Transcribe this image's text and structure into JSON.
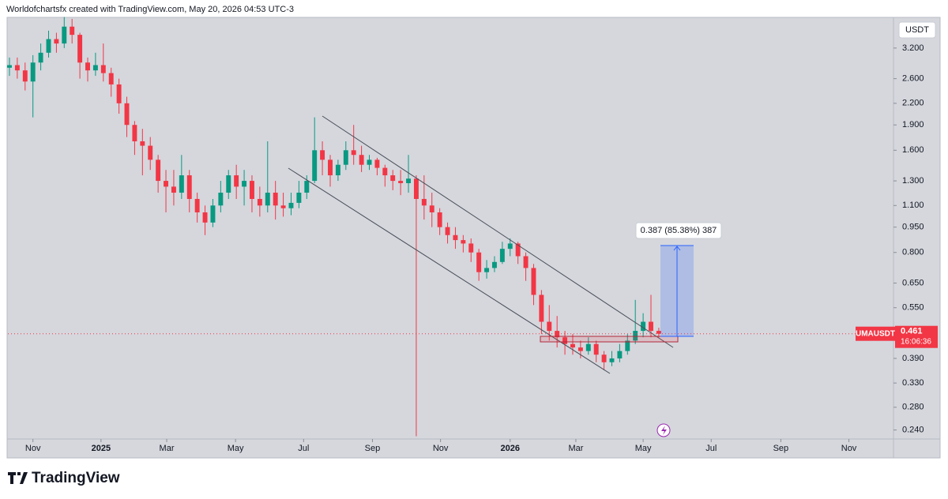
{
  "header": "Worldofchartsfx created with TradingView.com, May 20, 2026 04:53 UTC-3",
  "brand": "TradingView",
  "chart_data": {
    "type": "candlestick",
    "symbol": "UMAUSDT",
    "currency": "USDT",
    "log_scale": true,
    "up_color": "#089981",
    "down_color": "#f23645",
    "last_price": 0.461,
    "countdown": "16:06:36",
    "measure_label": "0.387 (85.38%) 387",
    "xlim": [
      -3.2,
      109.9
    ],
    "xticks": [
      {
        "value": 0,
        "label": "Nov"
      },
      {
        "value": 8.7,
        "label": "2025"
      },
      {
        "value": 17.1,
        "label": "Mar"
      },
      {
        "value": 25.9,
        "label": "May"
      },
      {
        "value": 34.6,
        "label": "Jul"
      },
      {
        "value": 43.4,
        "label": "Sep"
      },
      {
        "value": 52.1,
        "label": "Nov"
      },
      {
        "value": 61,
        "label": "2026"
      },
      {
        "value": 69.4,
        "label": "Mar"
      },
      {
        "value": 78,
        "label": "May"
      },
      {
        "value": 86.7,
        "label": "Jul"
      },
      {
        "value": 95.6,
        "label": "Sep"
      },
      {
        "value": 104.3,
        "label": "Nov"
      }
    ],
    "ylim": [
      0.227,
      3.94
    ],
    "yticks": [
      {
        "value": 3.2,
        "label": "3.200"
      },
      {
        "value": 2.6,
        "label": "2.600"
      },
      {
        "value": 2.2,
        "label": "2.200"
      },
      {
        "value": 1.9,
        "label": "1.900"
      },
      {
        "value": 1.6,
        "label": "1.600"
      },
      {
        "value": 1.3,
        "label": "1.300"
      },
      {
        "value": 1.1,
        "label": "1.100"
      },
      {
        "value": 0.95,
        "label": "0.950"
      },
      {
        "value": 0.8,
        "label": "0.800"
      },
      {
        "value": 0.65,
        "label": "0.650"
      },
      {
        "value": 0.55,
        "label": "0.550"
      },
      {
        "value": 0.39,
        "label": "0.390"
      },
      {
        "value": 0.33,
        "label": "0.330"
      },
      {
        "value": 0.28,
        "label": "0.280"
      },
      {
        "value": 0.24,
        "label": "0.240"
      }
    ],
    "x": [
      -3,
      -2,
      -1,
      0,
      1,
      2,
      3,
      4,
      5,
      6,
      7,
      8,
      9,
      10,
      11,
      12,
      13,
      14,
      15,
      16,
      17,
      18,
      19,
      20,
      21,
      22,
      23,
      24,
      25,
      26,
      27,
      28,
      29,
      30,
      31,
      32,
      33,
      34,
      35,
      36,
      37,
      38,
      39,
      40,
      41,
      42,
      43,
      44,
      45,
      46,
      47,
      48,
      49,
      50,
      51,
      52,
      53,
      54,
      55,
      56,
      57,
      58,
      59,
      60,
      61,
      62,
      63,
      64,
      65,
      66,
      67,
      68,
      69,
      70,
      71,
      72,
      73,
      74,
      75,
      76,
      77,
      78,
      79,
      80
    ],
    "open": [
      2.8,
      2.85,
      2.75,
      2.55,
      2.9,
      3.1,
      3.4,
      3.3,
      3.7,
      3.5,
      2.9,
      2.75,
      2.85,
      2.7,
      2.5,
      2.2,
      1.9,
      1.7,
      1.65,
      1.5,
      1.3,
      1.25,
      1.2,
      1.35,
      1.15,
      1.05,
      0.98,
      1.1,
      1.2,
      1.35,
      1.25,
      1.3,
      1.15,
      1.1,
      1.2,
      1.1,
      1.08,
      1.12,
      1.2,
      1.3,
      1.6,
      1.5,
      1.35,
      1.45,
      1.6,
      1.55,
      1.45,
      1.5,
      1.42,
      1.35,
      1.3,
      1.28,
      1.32,
      1.15,
      1.1,
      1.05,
      0.95,
      0.9,
      0.87,
      0.85,
      0.8,
      0.7,
      0.72,
      0.75,
      0.82,
      0.85,
      0.78,
      0.72,
      0.6,
      0.5,
      0.47,
      0.45,
      0.43,
      0.42,
      0.41,
      0.43,
      0.4,
      0.38,
      0.39,
      0.41,
      0.44,
      0.47,
      0.5,
      0.47
    ],
    "high": [
      3.0,
      3.0,
      2.9,
      3.05,
      3.3,
      3.6,
      3.55,
      3.95,
      3.9,
      3.55,
      3.0,
      3.1,
      3.3,
      2.8,
      2.6,
      2.3,
      1.95,
      1.85,
      1.75,
      1.55,
      1.4,
      1.4,
      1.55,
      1.4,
      1.2,
      1.1,
      1.15,
      1.3,
      1.4,
      1.45,
      1.4,
      1.35,
      1.25,
      1.7,
      1.3,
      1.2,
      1.2,
      1.3,
      1.35,
      2.0,
      1.7,
      1.55,
      1.5,
      1.7,
      1.9,
      1.65,
      1.55,
      1.52,
      1.45,
      1.4,
      1.4,
      1.55,
      1.35,
      1.35,
      1.2,
      1.08,
      0.98,
      0.95,
      0.9,
      0.88,
      0.82,
      0.76,
      0.78,
      0.86,
      0.88,
      0.86,
      0.8,
      0.74,
      0.62,
      0.56,
      0.52,
      0.47,
      0.46,
      0.44,
      0.45,
      0.44,
      0.41,
      0.41,
      0.43,
      0.46,
      0.58,
      0.53,
      0.6,
      0.48
    ],
    "low": [
      2.65,
      2.6,
      2.4,
      2.0,
      2.75,
      3.0,
      3.1,
      3.2,
      3.3,
      2.6,
      2.55,
      2.65,
      2.55,
      2.3,
      2.05,
      1.75,
      1.55,
      1.35,
      1.4,
      1.2,
      1.05,
      1.1,
      1.15,
      1.05,
      0.98,
      0.9,
      0.95,
      1.05,
      1.15,
      1.15,
      1.1,
      1.05,
      1.02,
      1.05,
      1.0,
      1.02,
      1.03,
      1.08,
      1.15,
      1.28,
      1.35,
      1.25,
      1.3,
      1.4,
      1.45,
      1.38,
      1.4,
      1.35,
      1.25,
      1.22,
      1.18,
      1.2,
      0.23,
      1.0,
      0.95,
      0.9,
      0.85,
      0.82,
      0.8,
      0.75,
      0.66,
      0.67,
      0.7,
      0.74,
      0.78,
      0.74,
      0.66,
      0.56,
      0.46,
      0.44,
      0.42,
      0.4,
      0.4,
      0.39,
      0.4,
      0.38,
      0.36,
      0.37,
      0.38,
      0.4,
      0.43,
      0.45,
      0.45,
      0.45
    ],
    "close": [
      2.85,
      2.75,
      2.55,
      2.9,
      3.1,
      3.4,
      3.3,
      3.7,
      3.5,
      2.9,
      2.75,
      2.85,
      2.7,
      2.5,
      2.2,
      1.9,
      1.7,
      1.65,
      1.5,
      1.3,
      1.25,
      1.2,
      1.35,
      1.15,
      1.05,
      0.98,
      1.1,
      1.2,
      1.35,
      1.25,
      1.3,
      1.15,
      1.1,
      1.2,
      1.1,
      1.08,
      1.12,
      1.2,
      1.3,
      1.6,
      1.5,
      1.35,
      1.45,
      1.6,
      1.55,
      1.45,
      1.5,
      1.42,
      1.35,
      1.3,
      1.28,
      1.32,
      1.15,
      1.1,
      1.05,
      0.95,
      0.9,
      0.87,
      0.85,
      0.8,
      0.7,
      0.72,
      0.75,
      0.82,
      0.85,
      0.78,
      0.72,
      0.6,
      0.5,
      0.47,
      0.45,
      0.43,
      0.42,
      0.41,
      0.43,
      0.4,
      0.38,
      0.39,
      0.41,
      0.44,
      0.47,
      0.5,
      0.47,
      0.461
    ]
  }
}
